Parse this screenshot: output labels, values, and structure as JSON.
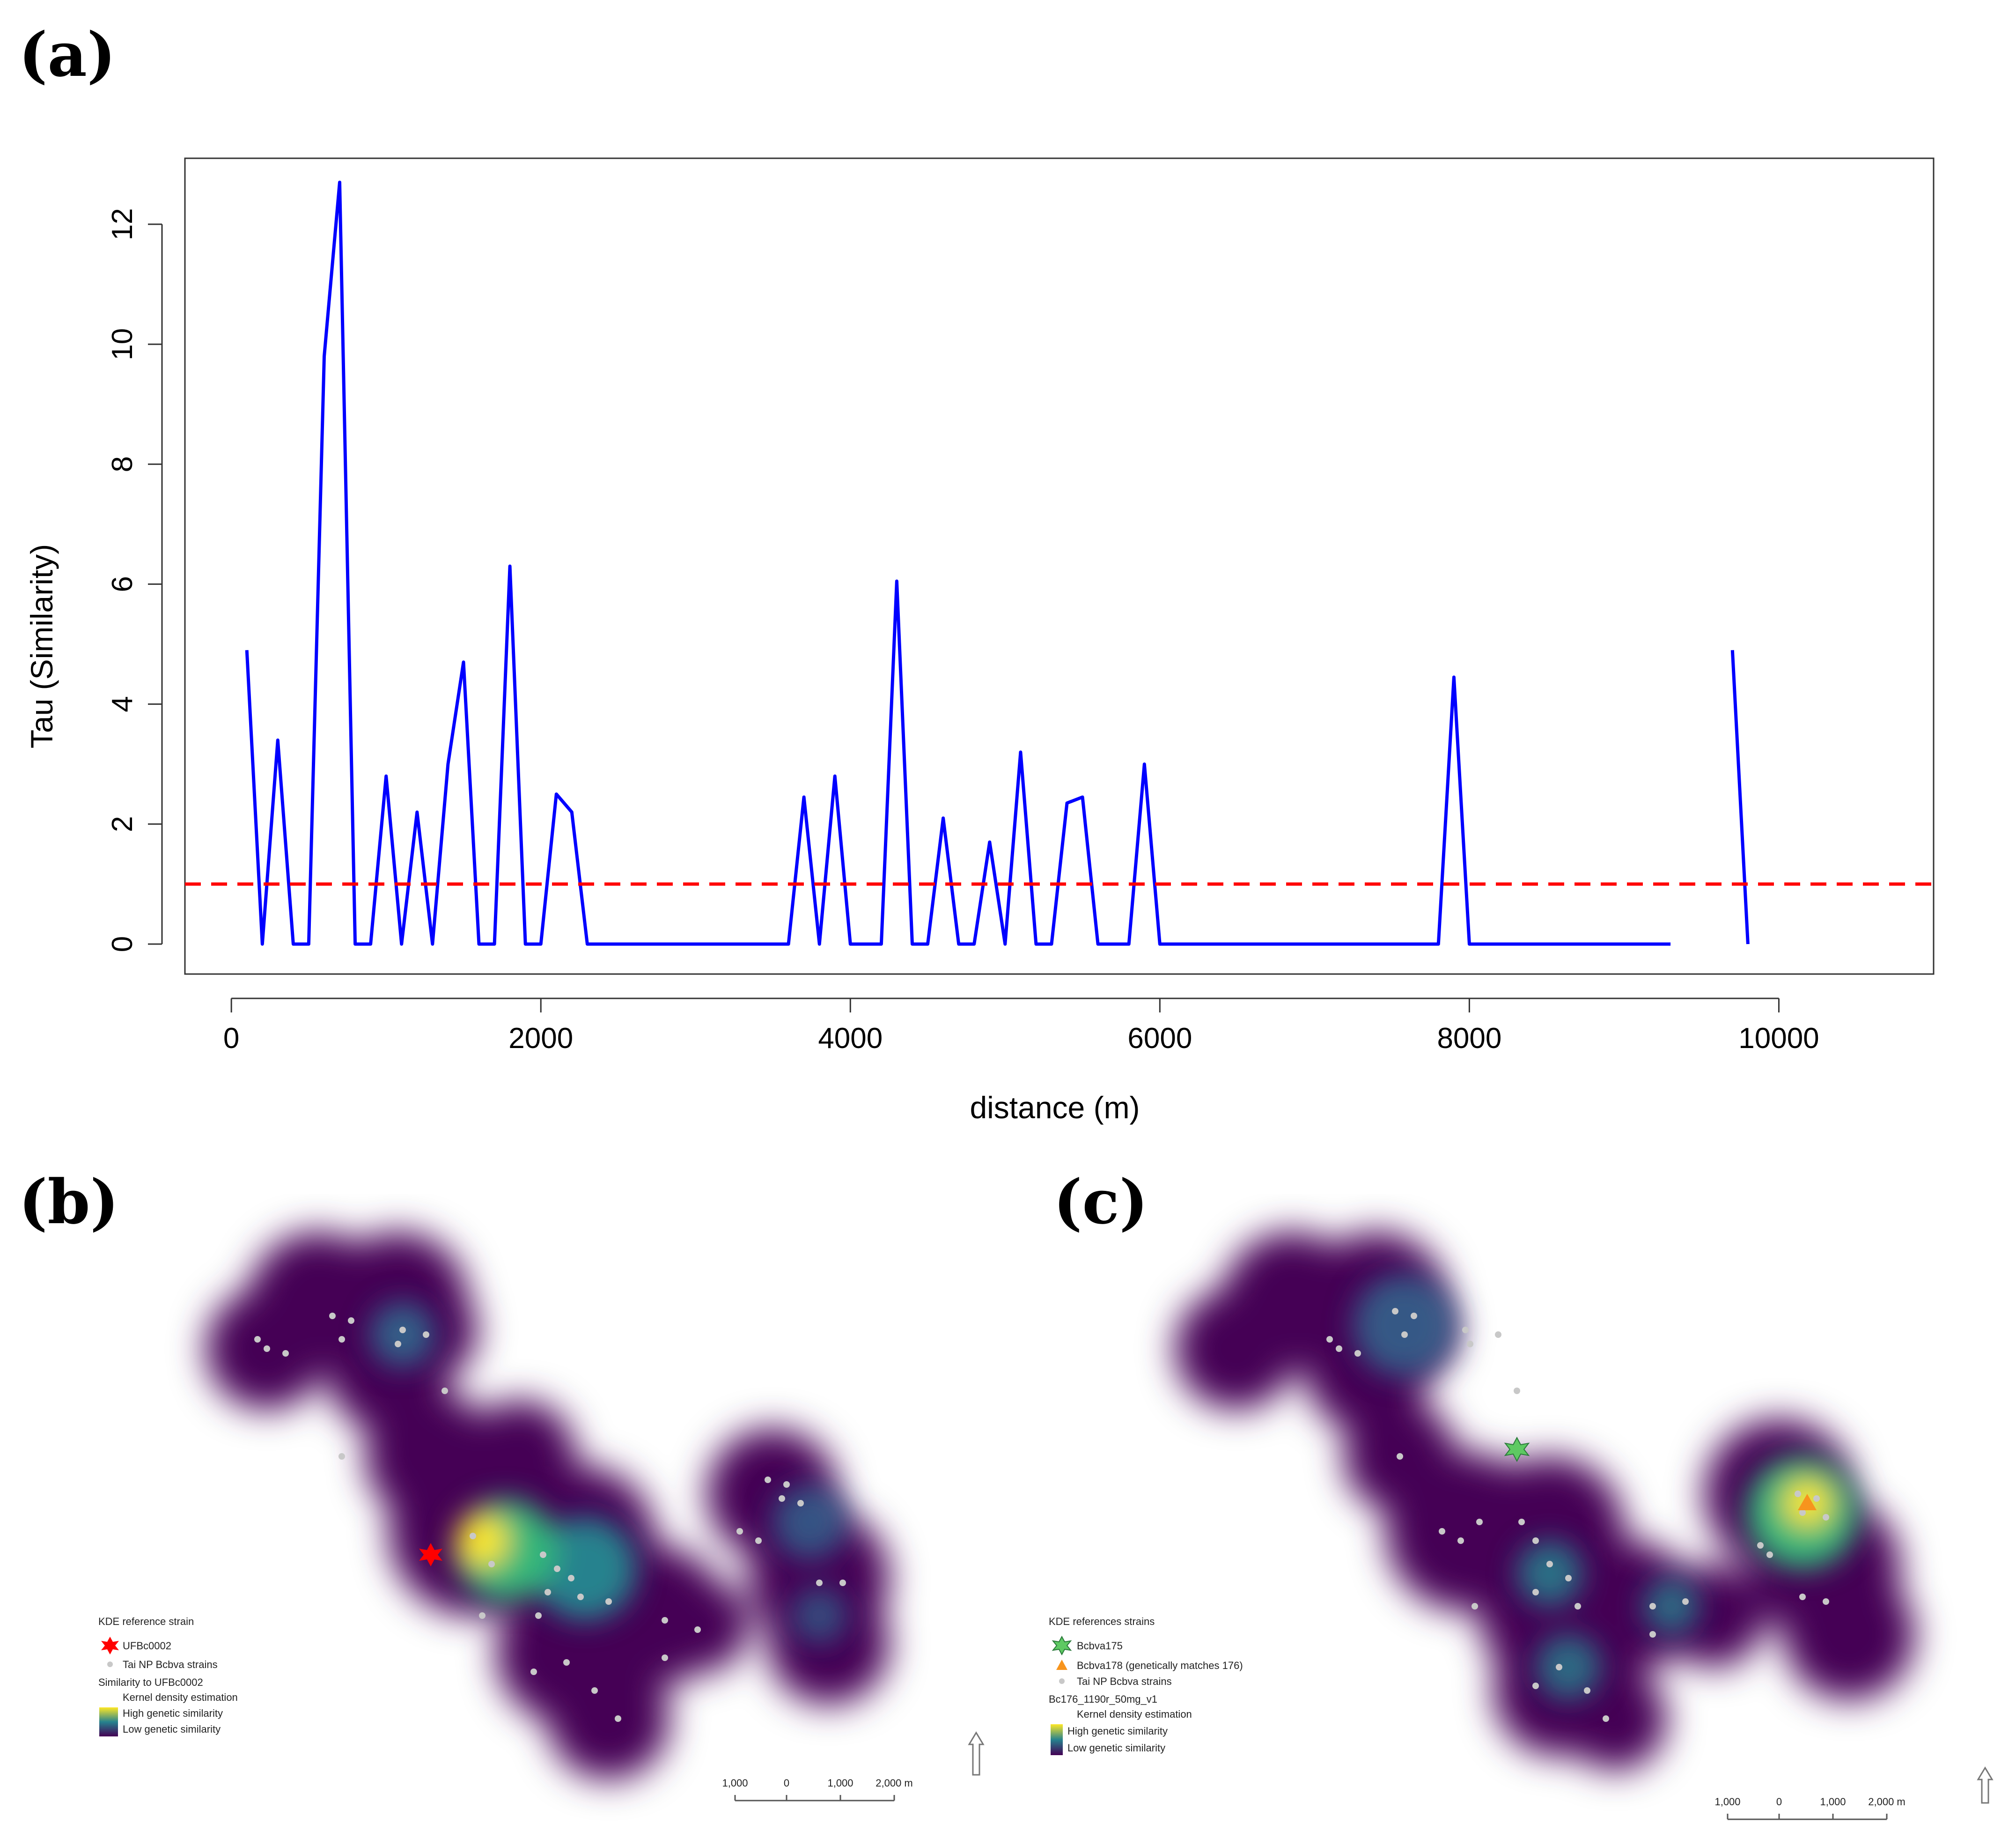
{
  "panel_labels": {
    "a": "(a)",
    "b": "(b)",
    "c": "(c)"
  },
  "chart_data": {
    "type": "line",
    "xlabel": "distance (m)",
    "ylabel": "Tau (Similarity)",
    "xlim": [
      -300,
      11000
    ],
    "ylim": [
      -0.5,
      13.1
    ],
    "xticks": [
      0,
      2000,
      4000,
      6000,
      8000,
      10000
    ],
    "xtick_labels": [
      "0",
      "2000",
      "4000",
      "6000",
      "8000",
      "10000"
    ],
    "yticks": [
      0,
      2,
      4,
      6,
      8,
      10,
      12
    ],
    "ytick_labels": [
      "0",
      "2",
      "4",
      "6",
      "8",
      "10",
      "12"
    ],
    "grid": false,
    "series": [
      {
        "name": "tau",
        "color": "#0000ff",
        "segments": [
          {
            "x": [
              100,
              200,
              300,
              400,
              500,
              600,
              700,
              800,
              900,
              1000,
              1100,
              1200,
              1300,
              1400,
              1500,
              1600,
              1700,
              1800,
              1900,
              2000,
              2100,
              2200,
              2300,
              2400,
              2500,
              2600,
              2700,
              2800,
              2900,
              3000,
              3100,
              3200,
              3300,
              3400,
              3500,
              3600,
              3700,
              3800,
              3900,
              4000,
              4100,
              4200,
              4300,
              4400,
              4500,
              4600,
              4700,
              4800,
              4900,
              5000,
              5100,
              5200,
              5300,
              5400,
              5500,
              5600,
              5700,
              5800,
              5900,
              6000,
              6100,
              6200,
              6300,
              6400,
              6500,
              6600,
              6700,
              6800,
              6900,
              7000,
              7100,
              7200,
              7300,
              7400,
              7500,
              7600,
              7700,
              7800,
              7900,
              8000,
              8100,
              8200,
              8300,
              8400,
              8500,
              8600,
              8700,
              8800,
              8900,
              9000,
              9100,
              9200,
              9300
            ],
            "y": [
              4.9,
              0,
              3.4,
              0,
              0,
              9.8,
              12.7,
              0,
              0,
              2.8,
              0,
              2.2,
              0,
              3,
              4.7,
              0,
              0,
              6.3,
              0,
              0,
              2.5,
              2.2,
              0,
              0,
              0,
              0,
              0,
              0,
              0,
              0,
              0,
              0,
              0,
              0,
              0,
              0,
              2.45,
              0,
              2.8,
              0,
              0,
              0,
              6.05,
              0,
              0,
              2.1,
              0,
              0,
              1.7,
              0,
              3.2,
              0,
              0,
              2.35,
              2.45,
              0,
              0,
              0,
              3,
              0,
              0,
              0,
              0,
              0,
              0,
              0,
              0,
              0,
              0,
              0,
              0,
              0,
              0,
              0,
              0,
              0,
              0,
              0,
              4.45,
              0,
              0,
              0,
              0,
              0,
              0,
              0,
              0,
              0,
              0,
              0,
              0,
              0,
              0
            ]
          },
          {
            "x": [
              9700,
              9800
            ],
            "y": [
              4.9,
              0
            ]
          }
        ]
      }
    ],
    "threshold": {
      "y": 1,
      "color": "#ff0000",
      "style": "dashed"
    }
  },
  "map_b": {
    "legend_title": "KDE reference strain",
    "ref_strain": "UFBc0002",
    "points_label": "Tai NP Bcbva strains",
    "layer_title": "Similarity to UFBc0002",
    "layer_subtitle": "Kernel density estimation",
    "high_label": "High genetic similarity",
    "low_label": "Low genetic similarity",
    "scalebar_labels": [
      "1,000",
      "0",
      "1,000",
      "2,000 m"
    ]
  },
  "map_c": {
    "legend_title": "KDE references strains",
    "ref_strain_1": "Bcbva175",
    "ref_strain_2": "Bcbva178 (genetically matches 176)",
    "points_label": "Tai NP Bcbva strains",
    "layer_title": "Bc176_1190r_50mg_v1",
    "layer_subtitle": "Kernel density estimation",
    "high_label": "High genetic similarity",
    "low_label": "Low genetic similarity",
    "scalebar_labels": [
      "1,000",
      "0",
      "1,000",
      "2,000 m"
    ]
  },
  "colors": {
    "kde_low": "#440154",
    "kde_mid": "#26828e",
    "kde_high": "#fde725",
    "ref_red": "#ff0000",
    "ref_green": "#5ec962",
    "ref_orange": "#f7941d",
    "point_grey": "#c8c8c8"
  }
}
